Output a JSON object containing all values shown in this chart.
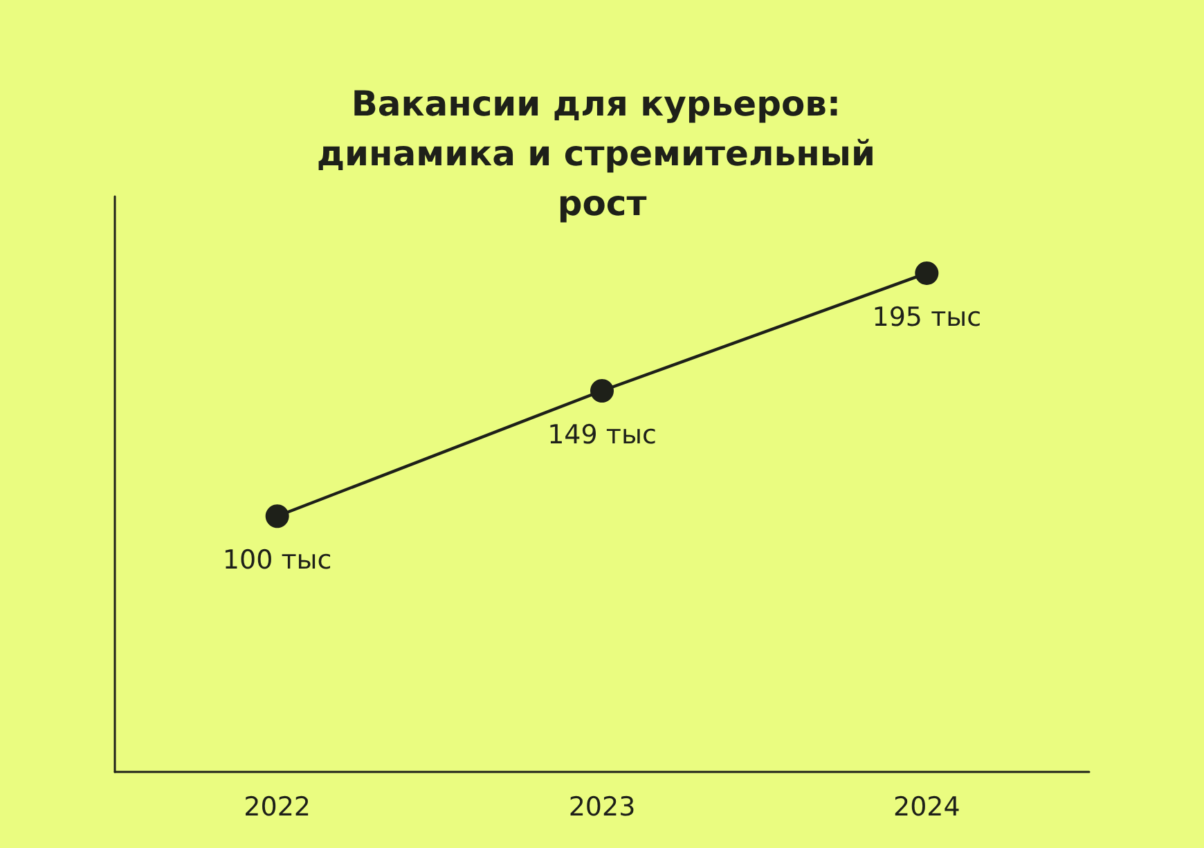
{
  "chart_data": {
    "type": "line",
    "title": "Вакансии для курьеров: динамика и стремительный рост",
    "categories": [
      "2022",
      "2023",
      "2024"
    ],
    "series": [
      {
        "color": "#1e2019",
        "values": [
          100,
          149,
          195
        ],
        "value_labels": [
          "100 тыс",
          "149 тыс",
          "195 тыс"
        ]
      }
    ],
    "ylim": [
      0,
      225
    ],
    "tick_labels": "x",
    "marker": "circle",
    "line_style": "solid"
  }
}
